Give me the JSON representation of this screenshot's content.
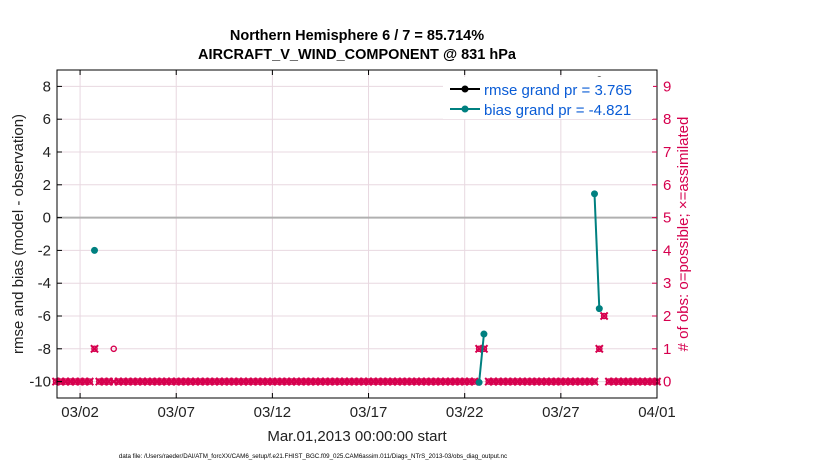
{
  "chart_data": {
    "type": "line",
    "title": "Northern Hemisphere 6 / 7 = 85.714%",
    "subtitle": "AIRCRAFT_V_WIND_COMPONENT @ 831 hPa",
    "xlabel": "Mar.01,2013 00:00:00 start",
    "ylabel": "rmse and bias (model - observation)",
    "y2label": "# of obs: o=possible; ×=assimilated",
    "footer": "data file: /Users/raeder/DAI/ATM_forcXX/CAM6_setup/f.e21.FHIST_BGC.f09_025.CAM6assim.011/Diags_NTrS_2013-03/obs_diag_output.nc",
    "x_tick_labels": [
      "03/02",
      "03/07",
      "03/12",
      "03/17",
      "03/22",
      "03/27",
      "04/01"
    ],
    "x_ticks": [
      2,
      7,
      12,
      17,
      22,
      27,
      32
    ],
    "xlim": [
      0.8,
      32
    ],
    "ylim": [
      -11,
      9
    ],
    "y_ticks": [
      -10,
      -8,
      -6,
      -4,
      -2,
      0,
      2,
      4,
      6,
      8
    ],
    "y_tick_labels": [
      "-10",
      "-8",
      "-6",
      "-4",
      "-2",
      "0",
      "2",
      "4",
      "6",
      "8"
    ],
    "y2lim": [
      -0.5,
      9.5
    ],
    "y2_ticks": [
      0,
      1,
      2,
      3,
      4,
      5,
      6,
      7,
      8,
      9
    ],
    "y2_tick_labels": [
      "0",
      "1",
      "2",
      "3",
      "4",
      "5",
      "6",
      "7",
      "8",
      "9"
    ],
    "grid": true,
    "legend_position": "top-right",
    "colors": {
      "rmse": "#000000",
      "bias": "#008080",
      "obs": "#d6004e",
      "zero_line": "#b0b0b0",
      "grid": "#e8d8e0"
    },
    "series": [
      {
        "name": "rmse grand pr = 3.765",
        "axis": "left",
        "segments": [
          [
            [
              29.0,
              8.4
            ]
          ]
        ]
      },
      {
        "name": "bias grand pr = -4.821",
        "axis": "left",
        "segments": [
          [
            [
              2.75,
              -2.0
            ]
          ],
          [
            [
              22.75,
              -10.05
            ],
            [
              23.0,
              -7.1
            ]
          ],
          [
            [
              28.75,
              1.45
            ],
            [
              29.0,
              -5.55
            ]
          ]
        ]
      }
    ],
    "obs_possible": {
      "axis": "right",
      "x": [
        0.75,
        1.0,
        1.25,
        1.5,
        1.75,
        2.0,
        2.25,
        2.5,
        2.75,
        3.0,
        3.25,
        3.5,
        3.75,
        4.0,
        4.25,
        4.5,
        4.75,
        5.0,
        5.25,
        5.5,
        5.75,
        6.0,
        6.25,
        6.5,
        6.75,
        7.0,
        7.25,
        7.5,
        7.75,
        8.0,
        8.25,
        8.5,
        8.75,
        9.0,
        9.25,
        9.5,
        9.75,
        10.0,
        10.25,
        10.5,
        10.75,
        11.0,
        11.25,
        11.5,
        11.75,
        12.0,
        12.25,
        12.5,
        12.75,
        13.0,
        13.25,
        13.5,
        13.75,
        14.0,
        14.25,
        14.5,
        14.75,
        15.0,
        15.25,
        15.5,
        15.75,
        16.0,
        16.25,
        16.5,
        16.75,
        17.0,
        17.25,
        17.5,
        17.75,
        18.0,
        18.25,
        18.5,
        18.75,
        19.0,
        19.25,
        19.5,
        19.75,
        20.0,
        20.25,
        20.5,
        20.75,
        21.0,
        21.25,
        21.5,
        21.75,
        22.0,
        22.25,
        22.5,
        22.75,
        23.0,
        23.25,
        23.5,
        23.75,
        24.0,
        24.25,
        24.5,
        24.75,
        25.0,
        25.25,
        25.5,
        25.75,
        26.0,
        26.25,
        26.5,
        26.75,
        27.0,
        27.25,
        27.5,
        27.75,
        28.0,
        28.25,
        28.5,
        28.75,
        29.0,
        29.25,
        29.5,
        29.75,
        30.0,
        30.25,
        30.5,
        30.75,
        31.0,
        31.25,
        31.5,
        31.75,
        32.0
      ],
      "values": [
        0,
        0,
        0,
        0,
        0,
        0,
        0,
        0,
        1,
        0,
        0,
        0,
        1,
        0,
        0,
        0,
        0,
        0,
        0,
        0,
        0,
        0,
        0,
        0,
        0,
        0,
        0,
        0,
        0,
        0,
        0,
        0,
        0,
        0,
        0,
        0,
        0,
        0,
        0,
        0,
        0,
        0,
        0,
        0,
        0,
        0,
        0,
        0,
        0,
        0,
        0,
        0,
        0,
        0,
        0,
        0,
        0,
        0,
        0,
        0,
        0,
        0,
        0,
        0,
        0,
        0,
        0,
        0,
        0,
        0,
        0,
        0,
        0,
        0,
        0,
        0,
        0,
        0,
        0,
        0,
        0,
        0,
        0,
        0,
        0,
        0,
        0,
        0,
        1,
        1,
        0,
        0,
        0,
        0,
        0,
        0,
        0,
        0,
        0,
        0,
        0,
        0,
        0,
        0,
        0,
        0,
        0,
        0,
        0,
        0,
        0,
        0,
        0,
        1,
        2,
        0,
        0,
        0,
        0,
        0,
        0,
        0,
        0,
        0,
        0,
        0
      ]
    },
    "obs_assimilated": {
      "axis": "right",
      "x": [
        0.75,
        1.0,
        1.25,
        1.5,
        1.75,
        2.0,
        2.25,
        2.5,
        2.75,
        3.0,
        3.25,
        3.5,
        3.75,
        4.0,
        4.25,
        4.5,
        4.75,
        5.0,
        5.25,
        5.5,
        5.75,
        6.0,
        6.25,
        6.5,
        6.75,
        7.0,
        7.25,
        7.5,
        7.75,
        8.0,
        8.25,
        8.5,
        8.75,
        9.0,
        9.25,
        9.5,
        9.75,
        10.0,
        10.25,
        10.5,
        10.75,
        11.0,
        11.25,
        11.5,
        11.75,
        12.0,
        12.25,
        12.5,
        12.75,
        13.0,
        13.25,
        13.5,
        13.75,
        14.0,
        14.25,
        14.5,
        14.75,
        15.0,
        15.25,
        15.5,
        15.75,
        16.0,
        16.25,
        16.5,
        16.75,
        17.0,
        17.25,
        17.5,
        17.75,
        18.0,
        18.25,
        18.5,
        18.75,
        19.0,
        19.25,
        19.5,
        19.75,
        20.0,
        20.25,
        20.5,
        20.75,
        21.0,
        21.25,
        21.5,
        21.75,
        22.0,
        22.25,
        22.5,
        22.75,
        23.0,
        23.25,
        23.5,
        23.75,
        24.0,
        24.25,
        24.5,
        24.75,
        25.0,
        25.25,
        25.5,
        25.75,
        26.0,
        26.25,
        26.5,
        26.75,
        27.0,
        27.25,
        27.5,
        27.75,
        28.0,
        28.25,
        28.5,
        28.75,
        29.0,
        29.25,
        29.5,
        29.75,
        30.0,
        30.25,
        30.5,
        30.75,
        31.0,
        31.25,
        31.5,
        31.75,
        32.0
      ],
      "values": [
        0,
        0,
        0,
        0,
        0,
        0,
        0,
        0,
        1,
        0,
        0,
        0,
        0,
        0,
        0,
        0,
        0,
        0,
        0,
        0,
        0,
        0,
        0,
        0,
        0,
        0,
        0,
        0,
        0,
        0,
        0,
        0,
        0,
        0,
        0,
        0,
        0,
        0,
        0,
        0,
        0,
        0,
        0,
        0,
        0,
        0,
        0,
        0,
        0,
        0,
        0,
        0,
        0,
        0,
        0,
        0,
        0,
        0,
        0,
        0,
        0,
        0,
        0,
        0,
        0,
        0,
        0,
        0,
        0,
        0,
        0,
        0,
        0,
        0,
        0,
        0,
        0,
        0,
        0,
        0,
        0,
        0,
        0,
        0,
        0,
        0,
        0,
        0,
        1,
        1,
        0,
        0,
        0,
        0,
        0,
        0,
        0,
        0,
        0,
        0,
        0,
        0,
        0,
        0,
        0,
        0,
        0,
        0,
        0,
        0,
        0,
        0,
        0,
        1,
        2,
        0,
        0,
        0,
        0,
        0,
        0,
        0,
        0,
        0,
        0,
        0
      ]
    }
  }
}
